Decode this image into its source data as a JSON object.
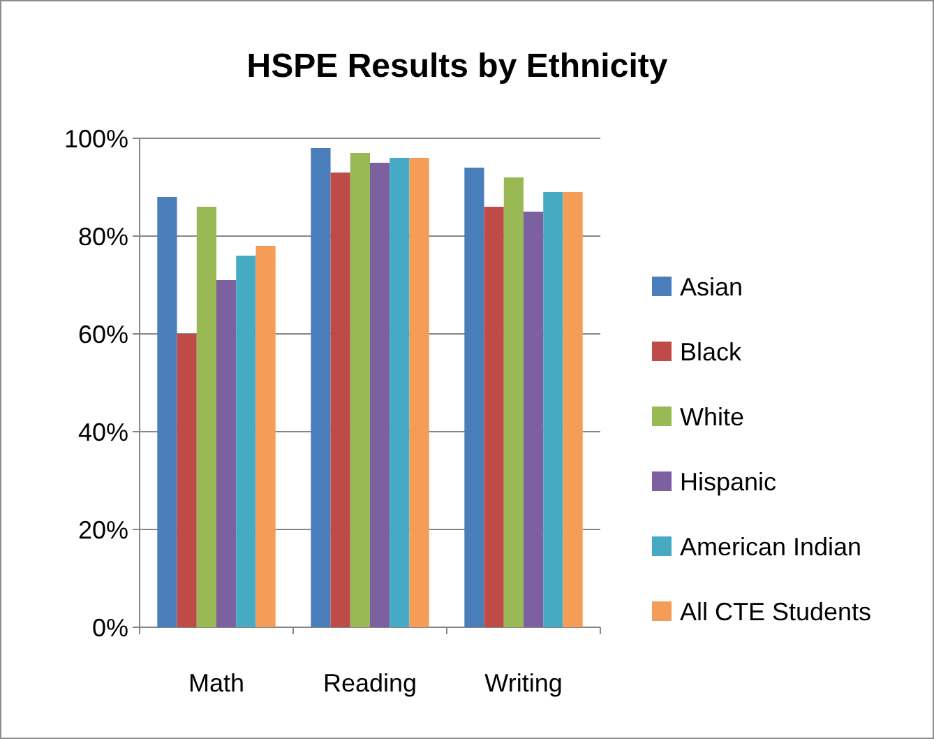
{
  "chart_data": {
    "type": "bar",
    "title": "HSPE Results by Ethnicity",
    "categories": [
      "Math",
      "Reading",
      "Writing"
    ],
    "series": [
      {
        "name": "Asian",
        "color": "#4a7ebb",
        "values": [
          88,
          98,
          94
        ]
      },
      {
        "name": "Black",
        "color": "#be4b48",
        "values": [
          60,
          93,
          86
        ]
      },
      {
        "name": "White",
        "color": "#98b954",
        "values": [
          86,
          97,
          92
        ]
      },
      {
        "name": "Hispanic",
        "color": "#7d60a0",
        "values": [
          71,
          95,
          85
        ]
      },
      {
        "name": "American Indian",
        "color": "#46aac5",
        "values": [
          76,
          96,
          89
        ]
      },
      {
        "name": "All CTE Students",
        "color": "#f59d56",
        "values": [
          78,
          96,
          89
        ]
      }
    ],
    "ylim": [
      0,
      100
    ],
    "yticks": [
      {
        "value": 0,
        "label": "0%"
      },
      {
        "value": 20,
        "label": "20%"
      },
      {
        "value": 40,
        "label": "40%"
      },
      {
        "value": 60,
        "label": "60%"
      },
      {
        "value": 80,
        "label": "80%"
      },
      {
        "value": 100,
        "label": "100%"
      }
    ],
    "grid": "y",
    "legend": "right"
  }
}
